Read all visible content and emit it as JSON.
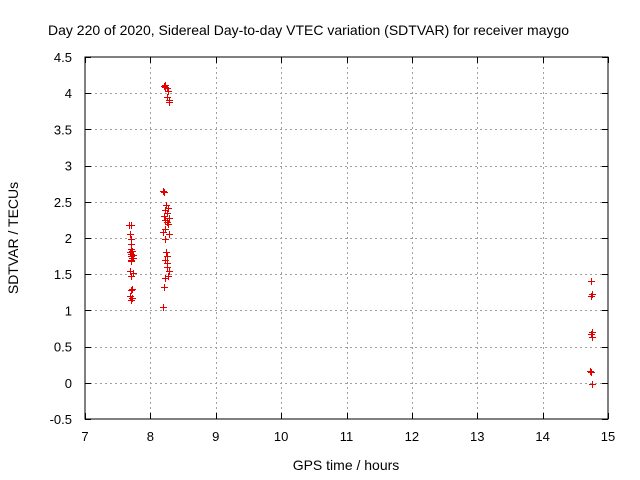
{
  "chart_data": {
    "type": "scatter",
    "title": "Day 220 of 2020, Sidereal Day-to-day VTEC variation (SDTVAR) for receiver maygo",
    "xlabel": "GPS time / hours",
    "ylabel": "SDTVAR / TECUs",
    "xlim": [
      7,
      15
    ],
    "ylim": [
      -0.5,
      4.5
    ],
    "x_ticks": [
      7,
      8,
      9,
      10,
      11,
      12,
      13,
      14,
      15
    ],
    "x_tick_labels": [
      "7",
      "8",
      "9",
      "10",
      "11",
      "12",
      "13",
      "14",
      "15"
    ],
    "y_ticks": [
      -0.5,
      0,
      0.5,
      1,
      1.5,
      2,
      2.5,
      3,
      3.5,
      4,
      4.5
    ],
    "y_tick_labels": [
      "-0.5",
      "0",
      "0.5",
      "1",
      "1.5",
      "2",
      "2.5",
      "3",
      "3.5",
      "4",
      "4.5"
    ],
    "grid": true,
    "legend": "none",
    "marker": "plus",
    "marker_color": "#e00000",
    "series": [
      {
        "name": "SDTVAR",
        "x": [
          7.68,
          7.69,
          7.7,
          7.71,
          7.7,
          7.72,
          7.69,
          7.71,
          7.73,
          7.7,
          7.72,
          7.74,
          7.7,
          7.71,
          7.69,
          7.73,
          7.7,
          7.72,
          7.71,
          7.69,
          7.72,
          7.71,
          7.7,
          8.21,
          8.22,
          8.23,
          8.25,
          8.27,
          8.26,
          8.28,
          8.29,
          8.21,
          8.2,
          8.24,
          8.27,
          8.23,
          8.26,
          8.21,
          8.28,
          8.22,
          8.25,
          8.27,
          8.23,
          8.2,
          8.28,
          8.22,
          8.24,
          8.26,
          8.23,
          8.26,
          8.25,
          8.28,
          8.27,
          8.22,
          8.21,
          8.2,
          14.74,
          14.75,
          14.74,
          14.76,
          14.74,
          14.75,
          14.73,
          14.74,
          14.75
        ],
        "y": [
          2.18,
          2.05,
          1.98,
          1.92,
          1.85,
          1.82,
          1.8,
          1.78,
          1.76,
          1.75,
          1.73,
          1.72,
          1.7,
          1.68,
          1.55,
          1.52,
          1.48,
          1.3,
          1.28,
          1.2,
          1.17,
          1.15,
          2.18,
          4.1,
          4.12,
          4.08,
          4.07,
          4.03,
          3.95,
          3.9,
          3.88,
          2.63,
          2.65,
          2.45,
          2.42,
          2.38,
          2.35,
          2.3,
          2.27,
          2.25,
          2.22,
          2.2,
          2.12,
          2.08,
          2.05,
          1.98,
          1.8,
          1.75,
          1.7,
          1.65,
          1.6,
          1.55,
          1.48,
          1.45,
          1.32,
          1.05,
          1.4,
          1.22,
          1.2,
          0.7,
          0.68,
          0.63,
          0.16,
          0.15,
          -0.02
        ]
      }
    ]
  }
}
